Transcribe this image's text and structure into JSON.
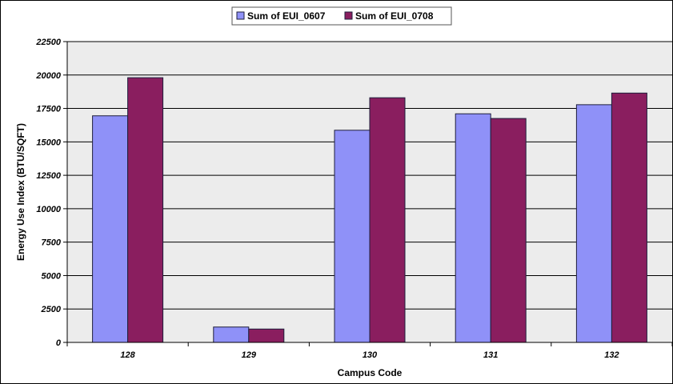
{
  "chart_data": {
    "type": "bar",
    "categories": [
      "128",
      "129",
      "130",
      "131",
      "132"
    ],
    "series": [
      {
        "name": "Sum of EUI_0607",
        "values": [
          16950,
          1150,
          15870,
          17100,
          17780
        ]
      },
      {
        "name": "Sum of EUI_0708",
        "values": [
          19800,
          1000,
          18300,
          16750,
          18650
        ]
      }
    ],
    "xlabel": "Campus Code",
    "ylabel": "Energy Use Index (BTU/SQFT)",
    "ylim": [
      0,
      22500
    ],
    "yticks": [
      "0",
      "2500",
      "5000",
      "7500",
      "10000",
      "12500",
      "15000",
      "17500",
      "20000",
      "22500"
    ],
    "grid": true,
    "legend_position": "top",
    "colors": {
      "series": [
        "#8F91F8",
        "#8A1E5F"
      ],
      "plot_background": "#ececec",
      "grid": "#000000",
      "bar_outline": "#1e1e3c"
    }
  }
}
